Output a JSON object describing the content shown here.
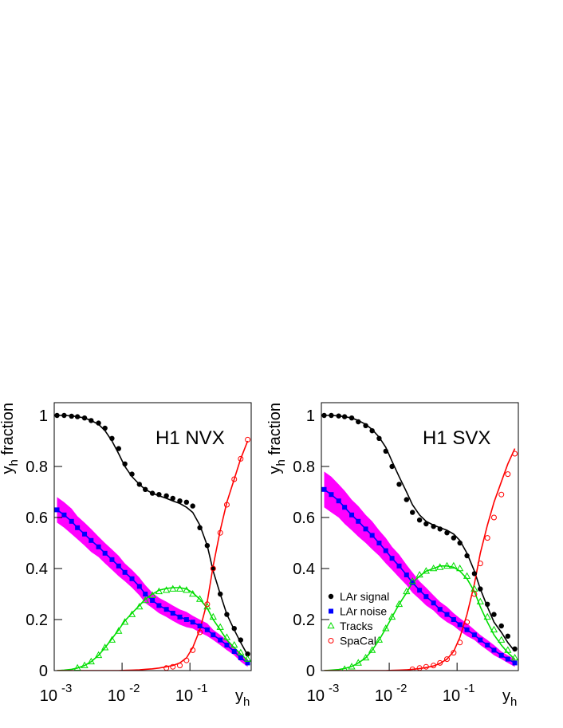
{
  "chart_data": [
    {
      "type": "line",
      "label": "H1 NVX",
      "xlabel": {
        "text": "y",
        "subscript": "h"
      },
      "ylabel": {
        "text": "y",
        "subscript": "h",
        "suffix": " fraction"
      },
      "xscale": "log",
      "xlim": [
        0.001,
        0.8
      ],
      "ylim": [
        0,
        1.05
      ],
      "xticks": [
        {
          "value": 0.001,
          "label": "10",
          "exponent": "-3"
        },
        {
          "value": 0.01,
          "label": "10",
          "exponent": "-2"
        },
        {
          "value": 0.1,
          "label": "10",
          "exponent": "-1"
        }
      ],
      "yticks": [
        0,
        0.2,
        0.4,
        0.6,
        0.8,
        1
      ],
      "x": [
        0.0011,
        0.0014,
        0.0018,
        0.0022,
        0.0028,
        0.0035,
        0.0045,
        0.0056,
        0.0071,
        0.0089,
        0.011,
        0.014,
        0.018,
        0.022,
        0.028,
        0.035,
        0.045,
        0.056,
        0.071,
        0.089,
        0.11,
        0.14,
        0.18,
        0.22,
        0.28,
        0.35,
        0.45,
        0.56,
        0.71
      ],
      "band": {
        "color": "#ff00ff",
        "lower": [
          0.58,
          0.56,
          0.535,
          0.515,
          0.49,
          0.465,
          0.445,
          0.42,
          0.395,
          0.37,
          0.35,
          0.325,
          0.295,
          0.265,
          0.245,
          0.225,
          0.21,
          0.195,
          0.18,
          0.17,
          0.165,
          0.15,
          0.135,
          0.12,
          0.1,
          0.08,
          0.06,
          0.035,
          0.015
        ],
        "upper": [
          0.68,
          0.66,
          0.635,
          0.605,
          0.58,
          0.555,
          0.525,
          0.5,
          0.475,
          0.45,
          0.42,
          0.395,
          0.365,
          0.335,
          0.305,
          0.285,
          0.27,
          0.255,
          0.24,
          0.23,
          0.215,
          0.2,
          0.185,
          0.16,
          0.14,
          0.12,
          0.09,
          0.065,
          0.045
        ]
      },
      "series": [
        {
          "color": "#000000",
          "marker": "filled-circle",
          "values": [
            1.0,
            1.0,
            0.997,
            0.995,
            0.99,
            0.98,
            0.97,
            0.95,
            0.91,
            0.87,
            0.81,
            0.77,
            0.73,
            0.71,
            0.695,
            0.69,
            0.685,
            0.675,
            0.665,
            0.66,
            0.645,
            0.56,
            0.49,
            0.4,
            0.3,
            0.22,
            0.165,
            0.12,
            0.065
          ],
          "curve": [
            1.0,
            1.0,
            0.998,
            0.995,
            0.99,
            0.98,
            0.965,
            0.94,
            0.9,
            0.85,
            0.8,
            0.76,
            0.73,
            0.71,
            0.695,
            0.685,
            0.675,
            0.665,
            0.655,
            0.64,
            0.62,
            0.57,
            0.49,
            0.39,
            0.3,
            0.22,
            0.16,
            0.11,
            0.06
          ]
        },
        {
          "color": "#0000ff",
          "marker": "filled-square",
          "values": [
            0.63,
            0.61,
            0.585,
            0.56,
            0.535,
            0.51,
            0.485,
            0.46,
            0.435,
            0.41,
            0.385,
            0.36,
            0.33,
            0.3,
            0.275,
            0.255,
            0.24,
            0.225,
            0.21,
            0.2,
            0.19,
            0.175,
            0.16,
            0.14,
            0.12,
            0.1,
            0.075,
            0.05,
            0.03
          ],
          "curve": [
            0.63,
            0.61,
            0.585,
            0.56,
            0.535,
            0.51,
            0.485,
            0.46,
            0.435,
            0.41,
            0.385,
            0.36,
            0.33,
            0.3,
            0.275,
            0.255,
            0.24,
            0.225,
            0.21,
            0.2,
            0.19,
            0.175,
            0.16,
            0.14,
            0.12,
            0.1,
            0.075,
            0.05,
            0.03
          ]
        },
        {
          "color": "#00dd00",
          "marker": "open-triangle",
          "values": [
            null,
            null,
            null,
            0.01,
            0.02,
            0.035,
            0.06,
            0.09,
            0.12,
            0.155,
            0.19,
            0.22,
            0.25,
            0.275,
            0.295,
            0.31,
            0.315,
            0.32,
            0.32,
            0.315,
            0.3,
            0.28,
            0.25,
            0.21,
            0.17,
            0.13,
            0.1,
            0.07,
            0.045
          ],
          "curve": [
            0.0,
            0.002,
            0.005,
            0.01,
            0.02,
            0.035,
            0.06,
            0.09,
            0.125,
            0.16,
            0.195,
            0.225,
            0.255,
            0.28,
            0.3,
            0.315,
            0.322,
            0.325,
            0.325,
            0.32,
            0.305,
            0.28,
            0.245,
            0.2,
            0.16,
            0.12,
            0.09,
            0.065,
            0.04
          ]
        },
        {
          "color": "#ff0000",
          "marker": "open-circle",
          "values": [
            null,
            null,
            null,
            null,
            null,
            null,
            null,
            null,
            null,
            null,
            null,
            null,
            null,
            null,
            null,
            null,
            0.01,
            0.015,
            0.02,
            0.04,
            0.08,
            0.15,
            0.26,
            0.4,
            0.54,
            0.65,
            0.75,
            0.83,
            0.905
          ],
          "curve": [
            0,
            0,
            0,
            0,
            0,
            0,
            0,
            0,
            0,
            0,
            0.001,
            0.002,
            0.003,
            0.005,
            0.007,
            0.01,
            0.015,
            0.02,
            0.03,
            0.05,
            0.09,
            0.16,
            0.27,
            0.41,
            0.55,
            0.66,
            0.75,
            0.83,
            0.9
          ]
        }
      ]
    },
    {
      "type": "line",
      "label": "H1 SVX",
      "xlabel": {
        "text": "y",
        "subscript": "h"
      },
      "ylabel": {
        "text": "y",
        "subscript": "h",
        "suffix": " fraction"
      },
      "xscale": "log",
      "xlim": [
        0.001,
        0.8
      ],
      "ylim": [
        0,
        1.05
      ],
      "xticks": [
        {
          "value": 0.001,
          "label": "10",
          "exponent": "-3"
        },
        {
          "value": 0.01,
          "label": "10",
          "exponent": "-2"
        },
        {
          "value": 0.1,
          "label": "10",
          "exponent": "-1"
        }
      ],
      "yticks": [
        0,
        0.2,
        0.4,
        0.6,
        0.8,
        1
      ],
      "legend": "center-left",
      "x": [
        0.0011,
        0.0014,
        0.0018,
        0.0022,
        0.0028,
        0.0035,
        0.0045,
        0.0056,
        0.0071,
        0.0089,
        0.011,
        0.014,
        0.018,
        0.022,
        0.028,
        0.035,
        0.045,
        0.056,
        0.071,
        0.089,
        0.11,
        0.14,
        0.18,
        0.22,
        0.28,
        0.35,
        0.45,
        0.56,
        0.71
      ],
      "band": {
        "color": "#ff00ff",
        "lower": [
          0.64,
          0.62,
          0.6,
          0.575,
          0.55,
          0.525,
          0.5,
          0.475,
          0.45,
          0.42,
          0.395,
          0.365,
          0.335,
          0.305,
          0.28,
          0.255,
          0.235,
          0.21,
          0.19,
          0.175,
          0.155,
          0.135,
          0.12,
          0.1,
          0.08,
          0.06,
          0.045,
          0.03,
          0.015
        ],
        "upper": [
          0.78,
          0.76,
          0.73,
          0.705,
          0.67,
          0.645,
          0.61,
          0.585,
          0.55,
          0.52,
          0.485,
          0.455,
          0.415,
          0.385,
          0.35,
          0.325,
          0.295,
          0.27,
          0.25,
          0.225,
          0.205,
          0.185,
          0.16,
          0.14,
          0.12,
          0.1,
          0.075,
          0.06,
          0.045
        ]
      },
      "series": [
        {
          "name": "LAr signal",
          "color": "#000000",
          "marker": "filled-circle",
          "values": [
            1.0,
            1.0,
            0.998,
            0.995,
            0.99,
            0.975,
            0.96,
            0.94,
            0.91,
            0.86,
            0.8,
            0.73,
            0.67,
            0.62,
            0.59,
            0.575,
            0.565,
            0.555,
            0.54,
            0.52,
            0.5,
            0.45,
            0.38,
            0.32,
            0.26,
            0.22,
            0.175,
            0.135,
            0.085
          ],
          "curve": [
            1.0,
            1.0,
            0.998,
            0.995,
            0.99,
            0.98,
            0.965,
            0.945,
            0.915,
            0.875,
            0.82,
            0.76,
            0.7,
            0.65,
            0.61,
            0.585,
            0.57,
            0.56,
            0.55,
            0.535,
            0.51,
            0.46,
            0.39,
            0.32,
            0.25,
            0.19,
            0.15,
            0.11,
            0.075
          ]
        },
        {
          "name": "LAr noise",
          "color": "#0000ff",
          "marker": "filled-square",
          "values": [
            0.71,
            0.69,
            0.665,
            0.64,
            0.61,
            0.585,
            0.555,
            0.53,
            0.5,
            0.47,
            0.44,
            0.41,
            0.375,
            0.345,
            0.315,
            0.29,
            0.265,
            0.24,
            0.22,
            0.2,
            0.18,
            0.16,
            0.14,
            0.12,
            0.1,
            0.08,
            0.06,
            0.045,
            0.03
          ],
          "curve": [
            0.71,
            0.69,
            0.665,
            0.64,
            0.61,
            0.585,
            0.555,
            0.53,
            0.5,
            0.47,
            0.44,
            0.41,
            0.375,
            0.345,
            0.315,
            0.29,
            0.265,
            0.24,
            0.22,
            0.2,
            0.18,
            0.16,
            0.14,
            0.12,
            0.1,
            0.08,
            0.06,
            0.045,
            0.03
          ]
        },
        {
          "name": "Tracks",
          "color": "#00dd00",
          "marker": "open-triangle",
          "values": [
            null,
            null,
            null,
            0.005,
            0.015,
            0.03,
            0.05,
            0.08,
            0.12,
            0.165,
            0.21,
            0.26,
            0.31,
            0.35,
            0.375,
            0.39,
            0.4,
            0.405,
            0.41,
            0.41,
            0.4,
            0.37,
            0.32,
            0.27,
            0.21,
            0.16,
            0.12,
            0.08,
            0.05
          ],
          "curve": [
            0,
            0.002,
            0.004,
            0.008,
            0.016,
            0.03,
            0.05,
            0.08,
            0.12,
            0.165,
            0.21,
            0.26,
            0.305,
            0.345,
            0.37,
            0.39,
            0.4,
            0.41,
            0.41,
            0.405,
            0.39,
            0.36,
            0.31,
            0.25,
            0.19,
            0.14,
            0.1,
            0.07,
            0.045
          ]
        },
        {
          "name": "SpaCal",
          "color": "#ff0000",
          "marker": "open-circle",
          "values": [
            null,
            null,
            null,
            null,
            null,
            null,
            null,
            null,
            null,
            null,
            null,
            null,
            null,
            0.005,
            0.01,
            0.015,
            0.02,
            0.03,
            0.045,
            0.07,
            0.11,
            0.19,
            0.3,
            0.42,
            0.52,
            0.6,
            0.69,
            0.77,
            0.85
          ],
          "curve": [
            0,
            0,
            0,
            0,
            0,
            0,
            0,
            0,
            0,
            0,
            0.001,
            0.002,
            0.003,
            0.005,
            0.008,
            0.012,
            0.018,
            0.028,
            0.045,
            0.075,
            0.13,
            0.22,
            0.34,
            0.46,
            0.57,
            0.66,
            0.74,
            0.81,
            0.87
          ]
        }
      ]
    }
  ]
}
